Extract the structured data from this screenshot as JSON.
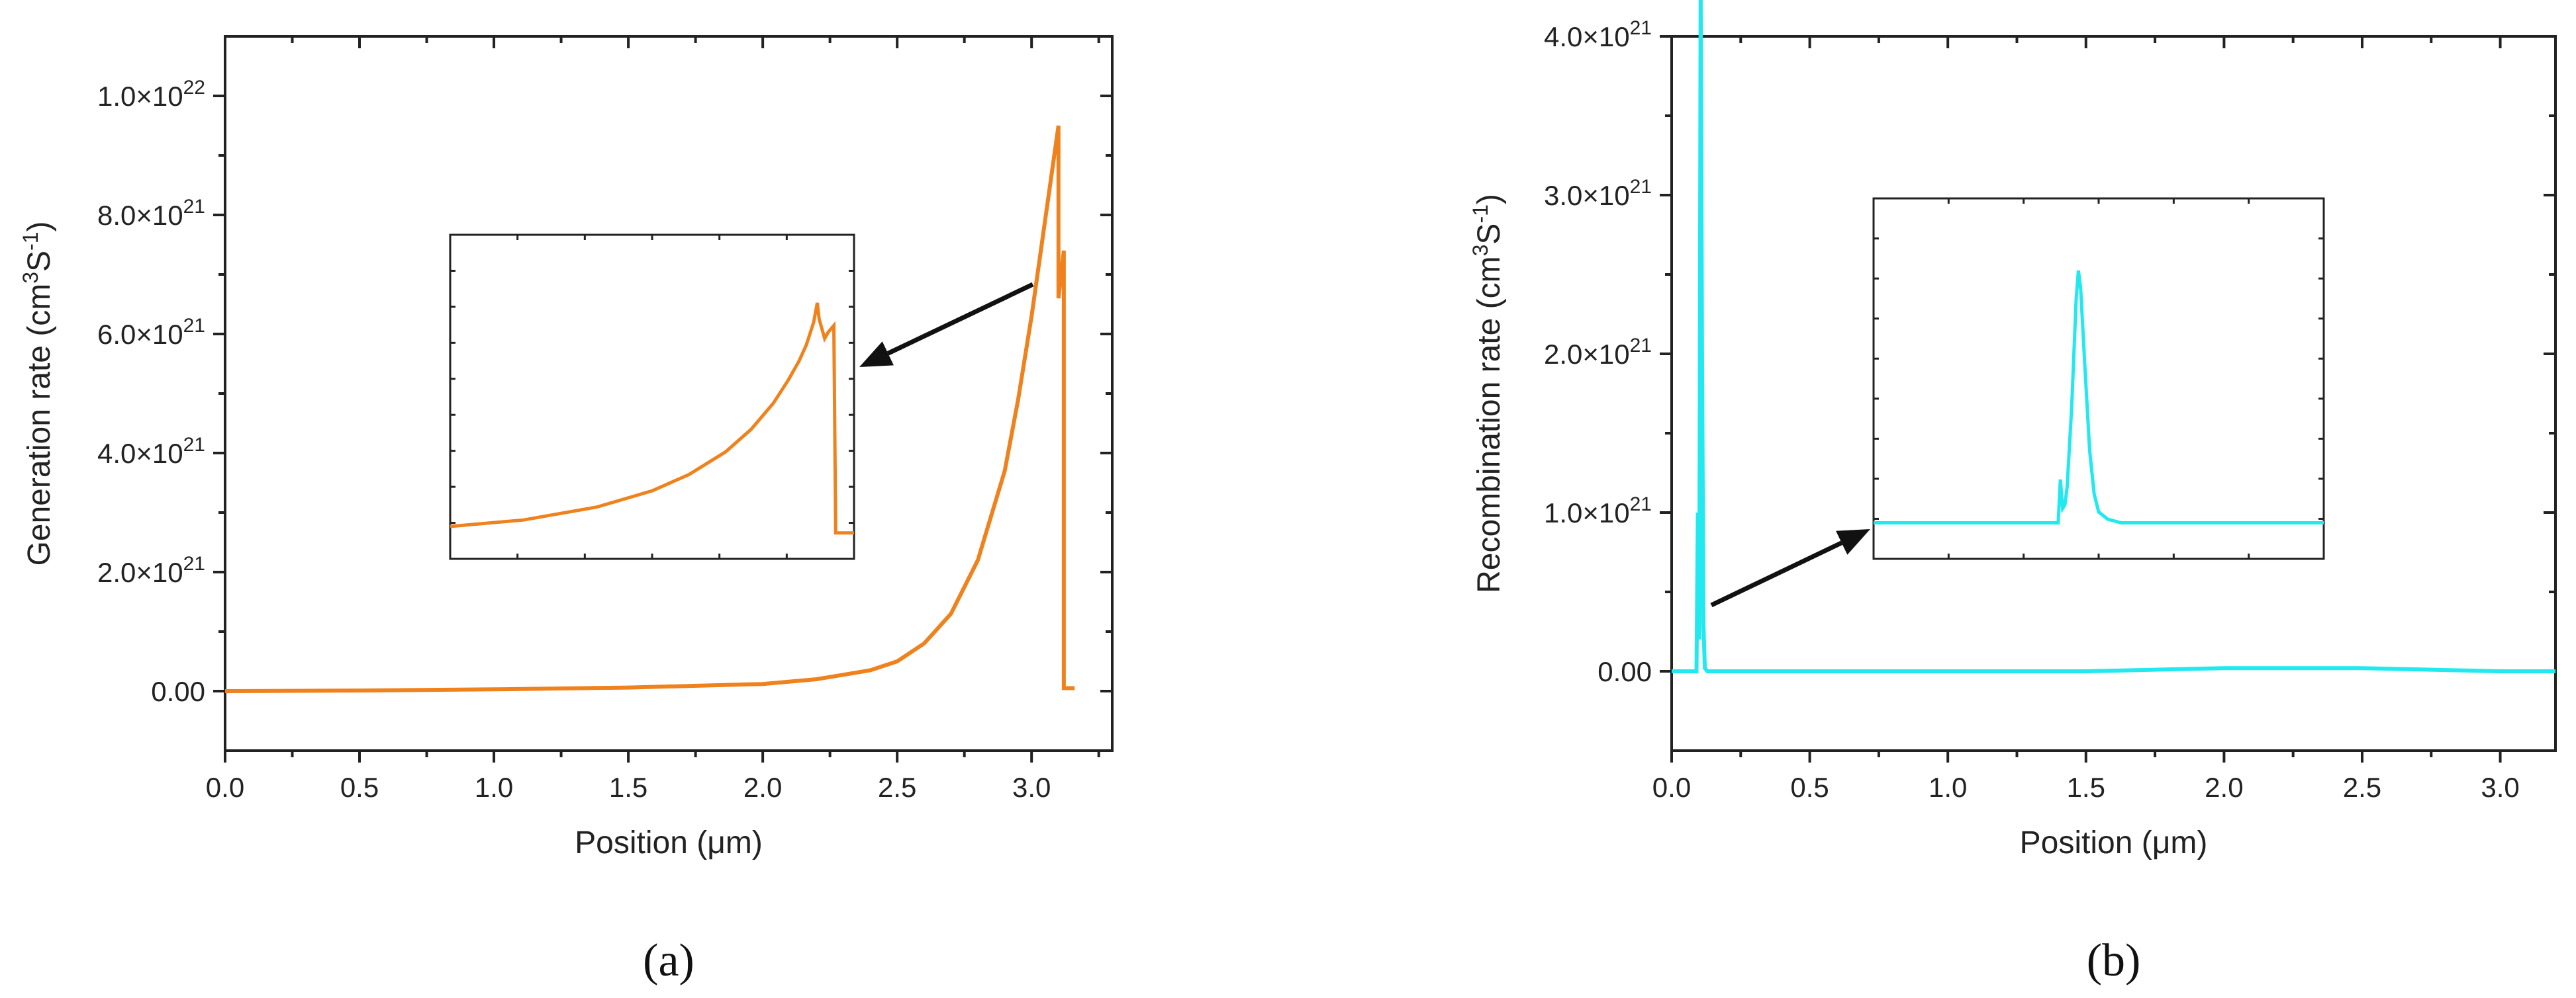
{
  "chart_data": [
    {
      "panel_label": "(a)",
      "type": "line",
      "xlabel": "Position (μm)",
      "ylabel": "Generation rate (cm³S⁻¹)",
      "xlim": [
        0,
        3.3
      ],
      "ylim": [
        -1e+21,
        1.1e+22
      ],
      "x_ticks": [
        "0.0",
        "0.5",
        "1.0",
        "1.5",
        "2.0",
        "2.5",
        "3.0"
      ],
      "y_ticks": [
        "0.00",
        "2.0×10²¹",
        "4.0×10²¹",
        "6.0×10²¹",
        "8.0×10²¹",
        "1.0×10²²"
      ],
      "series": [
        {
          "color": "#f0821e",
          "x": [
            0,
            0.5,
            1.0,
            1.5,
            2.0,
            2.2,
            2.4,
            2.5,
            2.6,
            2.7,
            2.8,
            2.9,
            2.95,
            3.0,
            3.05,
            3.1,
            3.1,
            3.12,
            3.12,
            3.14,
            3.16
          ],
          "y": [
            0,
            1e+19,
            3e+19,
            6e+19,
            1.2e+20,
            2e+20,
            3.5e+20,
            5e+20,
            8e+20,
            1.3e+21,
            2.2e+21,
            3.7e+21,
            4.9e+21,
            6.3e+21,
            7.9e+21,
            9.5e+21,
            6.6e+21,
            7.4e+21,
            5e+19,
            5e+19,
            5e+19
          ]
        }
      ],
      "inset": {
        "color": "#f0821e",
        "x": [
          0,
          0.2,
          0.4,
          0.55,
          0.65,
          0.75,
          0.82,
          0.88,
          0.92,
          0.95,
          0.97,
          0.99,
          1.0,
          1.005,
          1.02,
          1.03,
          1.045,
          1.05,
          1.065,
          1.1
        ],
        "y": [
          0.1,
          0.12,
          0.16,
          0.21,
          0.26,
          0.33,
          0.4,
          0.48,
          0.55,
          0.61,
          0.66,
          0.73,
          0.79,
          0.74,
          0.68,
          0.7,
          0.72,
          0.08,
          0.08,
          0.08
        ]
      }
    },
    {
      "panel_label": "(b)",
      "type": "line",
      "xlabel": "Position (μm)",
      "ylabel": "Recombination rate (cm³S⁻¹)",
      "xlim": [
        0,
        3.2
      ],
      "ylim": [
        -5e+20,
        4e+21
      ],
      "x_ticks": [
        "0.0",
        "0.5",
        "1.0",
        "1.5",
        "2.0",
        "2.5",
        "3.0"
      ],
      "y_ticks": [
        "0.00",
        "1.0×10²¹",
        "2.0×10²¹",
        "3.0×10²¹",
        "4.0×10²¹"
      ],
      "series": [
        {
          "color": "#22e8f0",
          "x": [
            0,
            0.09,
            0.095,
            0.1,
            0.105,
            0.11,
            0.115,
            0.12,
            0.13,
            0.5,
            1.0,
            1.5,
            2.0,
            2.5,
            3.0,
            3.2
          ],
          "y": [
            0.0,
            0.0,
            1e+21,
            2e+20,
            4.3e+21,
            2e+21,
            3e+20,
            2e+19,
            0.0,
            0.0,
            0.0,
            0.0,
            2e+19,
            2e+19,
            0.0,
            0.0
          ],
          "y_axis_extends_to": 4.5e+21
        }
      ],
      "inset": {
        "color": "#22e8f0",
        "x": [
          0,
          0.41,
          0.415,
          0.42,
          0.425,
          0.43,
          0.44,
          0.45,
          0.455,
          0.46,
          0.47,
          0.48,
          0.49,
          0.5,
          0.52,
          0.55,
          1.0
        ],
        "y": [
          0.1,
          0.1,
          0.22,
          0.14,
          0.15,
          0.2,
          0.42,
          0.72,
          0.8,
          0.75,
          0.52,
          0.3,
          0.18,
          0.13,
          0.11,
          0.1,
          0.1
        ]
      }
    }
  ]
}
